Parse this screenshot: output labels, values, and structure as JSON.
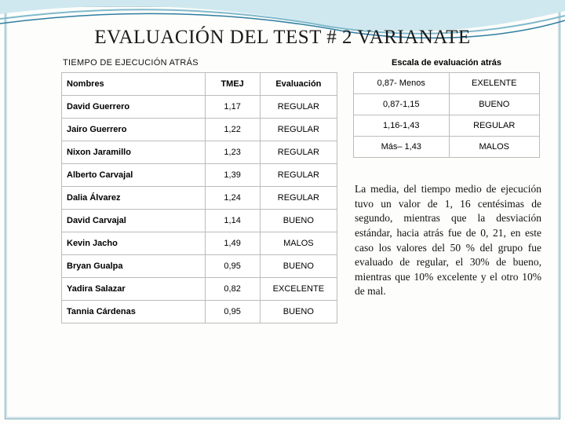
{
  "title": "EVALUACIÓN DEL  TEST # 2 VARIANATE",
  "left_table": {
    "caption": "TIEMPO DE EJECUCIÓN ATRÁS",
    "headers": {
      "name": "Nombres",
      "tmej": "TMEJ",
      "eval": "Evaluación"
    },
    "rows": [
      {
        "name": "David Guerrero",
        "tmej": "1,17",
        "eval": "REGULAR"
      },
      {
        "name": "Jairo Guerrero",
        "tmej": "1,22",
        "eval": "REGULAR"
      },
      {
        "name": "Nixon Jaramillo",
        "tmej": "1,23",
        "eval": "REGULAR"
      },
      {
        "name": "Alberto Carvajal",
        "tmej": "1,39",
        "eval": "REGULAR"
      },
      {
        "name": "Dalia Álvarez",
        "tmej": "1,24",
        "eval": "REGULAR"
      },
      {
        "name": "David Carvajal",
        "tmej": "1,14",
        "eval": "BUENO"
      },
      {
        "name": "Kevin Jacho",
        "tmej": "1,49",
        "eval": "MALOS"
      },
      {
        "name": "Bryan Gualpa",
        "tmej": "0,95",
        "eval": "BUENO"
      },
      {
        "name": "Yadira Salazar",
        "tmej": "0,82",
        "eval": "EXCELENTE"
      },
      {
        "name": "Tannia Cárdenas",
        "tmej": "0,95",
        "eval": "BUENO"
      }
    ]
  },
  "right_table": {
    "caption": "Escala de evaluación atrás",
    "rows": [
      {
        "range": "0,87- Menos",
        "label": "EXELENTE"
      },
      {
        "range": "0,87-1,15",
        "label": "BUENO"
      },
      {
        "range": "1,16-1,43",
        "label": "REGULAR"
      },
      {
        "range": "Más– 1,43",
        "label": "MALOS"
      }
    ]
  },
  "paragraph": "La media, del tiempo medio de ejecución tuvo un valor de 1, 16 centésimas de segundo, mientras que la desviación estándar, hacia atrás fue de 0, 21, en este caso los valores del 50 % del grupo fue evaluado de regular, el 30% de bueno, mientras que 10% excelente y el otro 10% de mal.",
  "colors": {
    "wave_light": "#cfe8ef",
    "wave_mid": "#7fb9cc",
    "wave_line": "#2e7ea0",
    "border": "#bcbcbc",
    "frame": "#6aa2b8"
  }
}
